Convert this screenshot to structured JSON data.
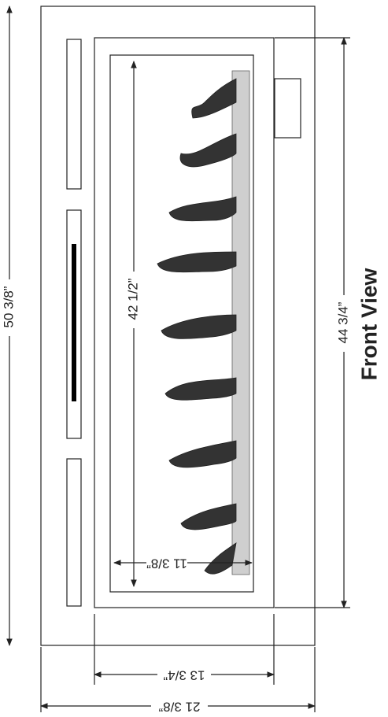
{
  "dimensions": {
    "overall_height": "50 3/8”",
    "opening_height": "44 3/4”",
    "glass_height": "42 1/2”",
    "glass_inset": "11 3/8”",
    "opening_width": "13 3/4”",
    "overall_width": "21 3/8”"
  },
  "view_label": "Front View"
}
